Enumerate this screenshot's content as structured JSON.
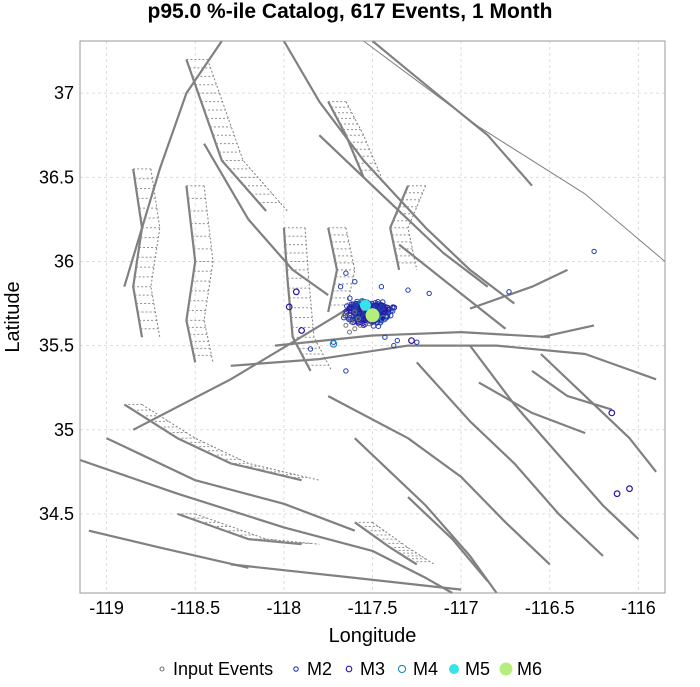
{
  "chart_data": {
    "type": "scatter",
    "title": "p95.0 %-ile Catalog, 617 Events, 1 Month",
    "xlabel": "Longitude",
    "ylabel": "Latitude",
    "xlim": [
      -119.15,
      -115.85
    ],
    "ylim": [
      34.03,
      37.31
    ],
    "xticks": [
      -119,
      -118.5,
      -118,
      -117.5,
      -117,
      -116.5,
      -116
    ],
    "yticks": [
      34.5,
      35,
      35.5,
      36,
      36.5,
      37
    ],
    "grid": true,
    "legend_position": "bottom",
    "legend": [
      {
        "label": "Input Events",
        "marker": "small-circle",
        "color": "#777777"
      },
      {
        "label": "M2",
        "marker": "circle",
        "color": "#1f3fae"
      },
      {
        "label": "M3",
        "marker": "circle",
        "color": "#2a14a6"
      },
      {
        "label": "M4",
        "marker": "circle",
        "color": "#2288bb"
      },
      {
        "label": "M5",
        "marker": "filled-circle",
        "color": "#35e3e8"
      },
      {
        "label": "M6",
        "marker": "filled-circle",
        "color": "#b6ee7e"
      }
    ],
    "cluster_center": {
      "x": -117.52,
      "y": 35.7
    },
    "series": [
      {
        "name": "Input Events",
        "color": "#777777",
        "points": [
          [
            -117.62,
            35.64
          ],
          [
            -117.65,
            35.62
          ],
          [
            -117.58,
            35.66
          ],
          [
            -117.6,
            35.6
          ],
          [
            -117.55,
            35.72
          ],
          [
            -117.48,
            35.67
          ],
          [
            -117.66,
            35.68
          ],
          [
            -117.63,
            35.58
          ],
          [
            -117.57,
            35.62
          ],
          [
            -117.52,
            35.63
          ],
          [
            -117.6,
            35.7
          ]
        ]
      },
      {
        "name": "M2",
        "color": "#1f3fae",
        "points": [
          [
            -116.25,
            36.06
          ],
          [
            -116.73,
            35.82
          ],
          [
            -117.85,
            35.48
          ],
          [
            -117.65,
            35.35
          ],
          [
            -117.72,
            35.52
          ],
          [
            -117.43,
            35.55
          ],
          [
            -117.38,
            35.5
          ],
          [
            -117.3,
            35.83
          ],
          [
            -117.68,
            35.85
          ],
          [
            -117.36,
            35.53
          ],
          [
            -117.18,
            35.81
          ],
          [
            -117.55,
            35.62
          ],
          [
            -117.6,
            35.88
          ],
          [
            -117.25,
            35.52
          ],
          [
            -117.45,
            35.85
          ],
          [
            -117.65,
            35.93
          ]
        ]
      },
      {
        "name": "M3",
        "color": "#2a14a6",
        "points": [
          [
            -117.93,
            35.82
          ],
          [
            -117.97,
            35.73
          ],
          [
            -117.9,
            35.59
          ],
          [
            -116.15,
            35.1
          ],
          [
            -116.05,
            34.65
          ],
          [
            -116.12,
            34.62
          ],
          [
            -117.28,
            35.53
          ]
        ]
      },
      {
        "name": "M4",
        "color": "#2288bb",
        "points": [
          [
            -117.72,
            35.51
          ],
          [
            -117.44,
            35.66
          ],
          [
            -117.56,
            35.76
          ]
        ]
      },
      {
        "name": "M5",
        "color": "#35e3e8",
        "points": [
          [
            -117.54,
            35.74
          ]
        ]
      },
      {
        "name": "M6",
        "color": "#b6ee7e",
        "points": [
          [
            -117.5,
            35.68
          ]
        ]
      }
    ]
  }
}
